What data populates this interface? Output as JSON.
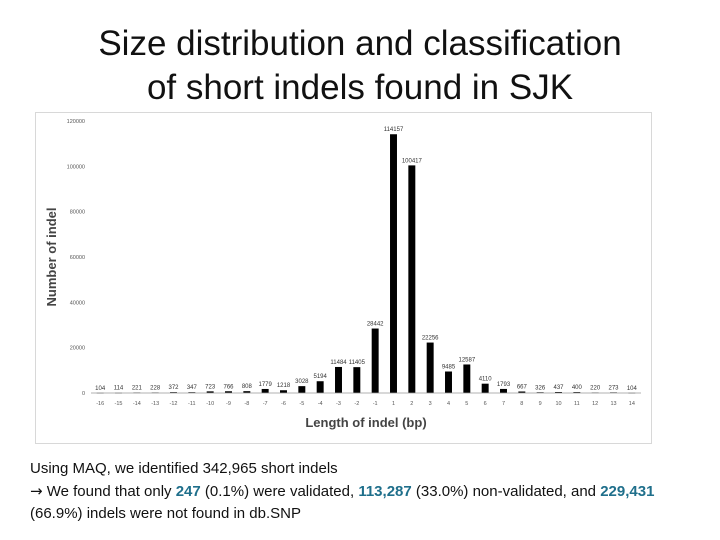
{
  "slide": {
    "title_line1": "Size distribution and classification",
    "title_line2": "of short indels found in SJK"
  },
  "chart_data": {
    "type": "bar",
    "xlabel": "Length of indel (bp)",
    "ylabel": "Number of indel",
    "ylim": [
      0,
      120000
    ],
    "yticks": [
      "0",
      "20000",
      "40000",
      "60000",
      "80000",
      "100000",
      "120000"
    ],
    "categories": [
      "-16",
      "-15",
      "-14",
      "-13",
      "-12",
      "-11",
      "-10",
      "-9",
      "-8",
      "-7",
      "-6",
      "-5",
      "-4",
      "-3",
      "-2",
      "-1",
      "1",
      "2",
      "3",
      "4",
      "5",
      "6",
      "7",
      "8",
      "9",
      "10",
      "11",
      "12",
      "13",
      "14"
    ],
    "values": [
      104,
      114,
      221,
      228,
      372,
      347,
      723,
      766,
      808,
      1779,
      1218,
      3028,
      5194,
      11484,
      11405,
      28442,
      114157,
      100417,
      22256,
      9485,
      12587,
      4110,
      1793,
      667,
      326,
      437,
      400,
      220,
      273,
      104
    ],
    "labels": [
      "104",
      "114",
      "221",
      "228",
      "372",
      "347",
      "723",
      "766",
      "808",
      "1779",
      "1218",
      "3028",
      "5194",
      "11484",
      "11405",
      "28442",
      "114157",
      "100417",
      "22256",
      "9485",
      "12587",
      "4110",
      "1793",
      "667",
      "326",
      "437",
      "400",
      "220",
      "273",
      "104"
    ],
    "bar_color": "#000000",
    "grid": false,
    "legend": "none"
  },
  "body": {
    "line1": "Using MAQ, we identified 342,965 short indels",
    "arrow": "→",
    "line2_a": " We found that only ",
    "num_validated": "247",
    "line2_b": " (0.1%) were validated, ",
    "num_nonvalidated": "113,287",
    "line2_c": " (33.0%) non-validated, and ",
    "num_notfound": "229,431",
    "line2_d": " (66.9%) indels were not found in db.SNP"
  }
}
